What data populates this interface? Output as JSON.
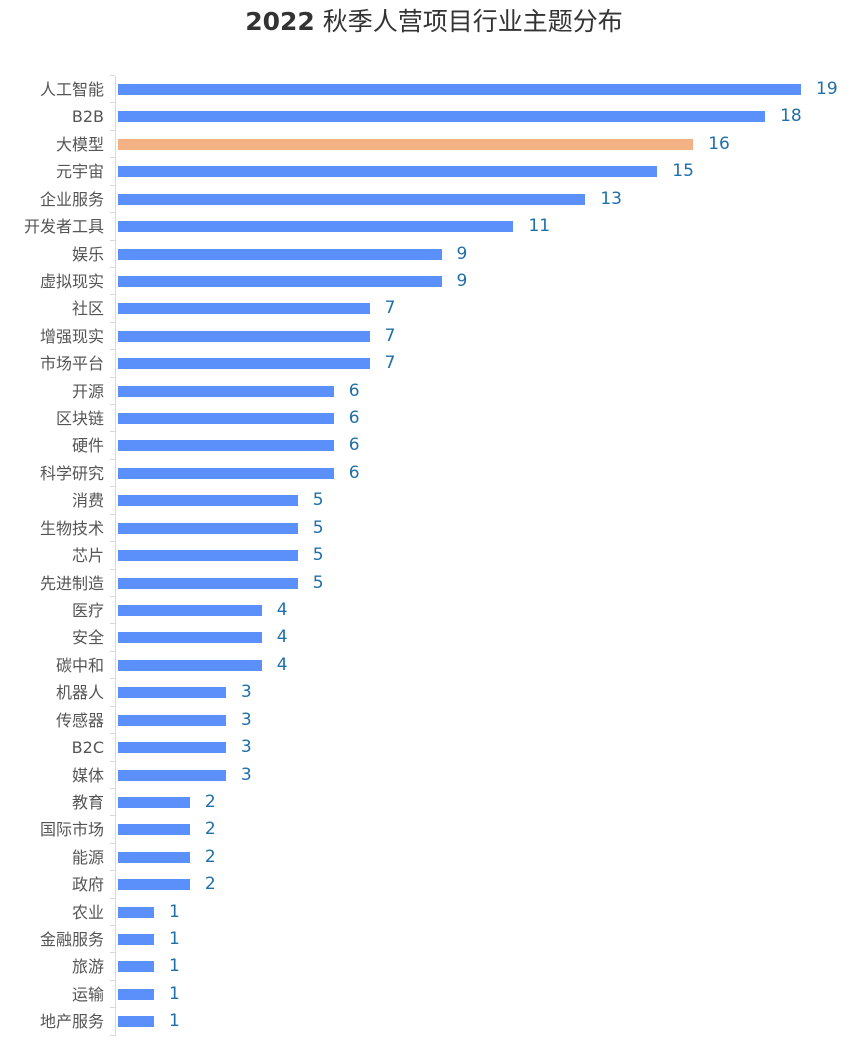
{
  "title_year": "2022",
  "title_text": " 秋季人营项目行业主题分布",
  "chart_data": {
    "type": "bar",
    "orientation": "horizontal",
    "title": "2022 秋季人营项目行业主题分布",
    "xlabel": "",
    "ylabel": "",
    "grid": false,
    "legend": null,
    "highlight_category": "大模型",
    "colors": {
      "default": "#5b8ff9",
      "highlight": "#f4b183",
      "value_label": "#1f6fa8"
    },
    "categories": [
      "人工智能",
      "B2B",
      "大模型",
      "元宇宙",
      "企业服务",
      "开发者工具",
      "娱乐",
      "虚拟现实",
      "社区",
      "增强现实",
      "市场平台",
      "开源",
      "区块链",
      "硬件",
      "科学研究",
      "消费",
      "生物技术",
      "芯片",
      "先进制造",
      "医疗",
      "安全",
      "碳中和",
      "机器人",
      "传感器",
      "B2C",
      "媒体",
      "教育",
      "国际市场",
      "能源",
      "政府",
      "农业",
      "金融服务",
      "旅游",
      "运输",
      "地产服务"
    ],
    "values": [
      19,
      18,
      16,
      15,
      13,
      11,
      9,
      9,
      7,
      7,
      7,
      6,
      6,
      6,
      6,
      5,
      5,
      5,
      5,
      4,
      4,
      4,
      3,
      3,
      3,
      3,
      2,
      2,
      2,
      2,
      1,
      1,
      1,
      1,
      1
    ]
  }
}
